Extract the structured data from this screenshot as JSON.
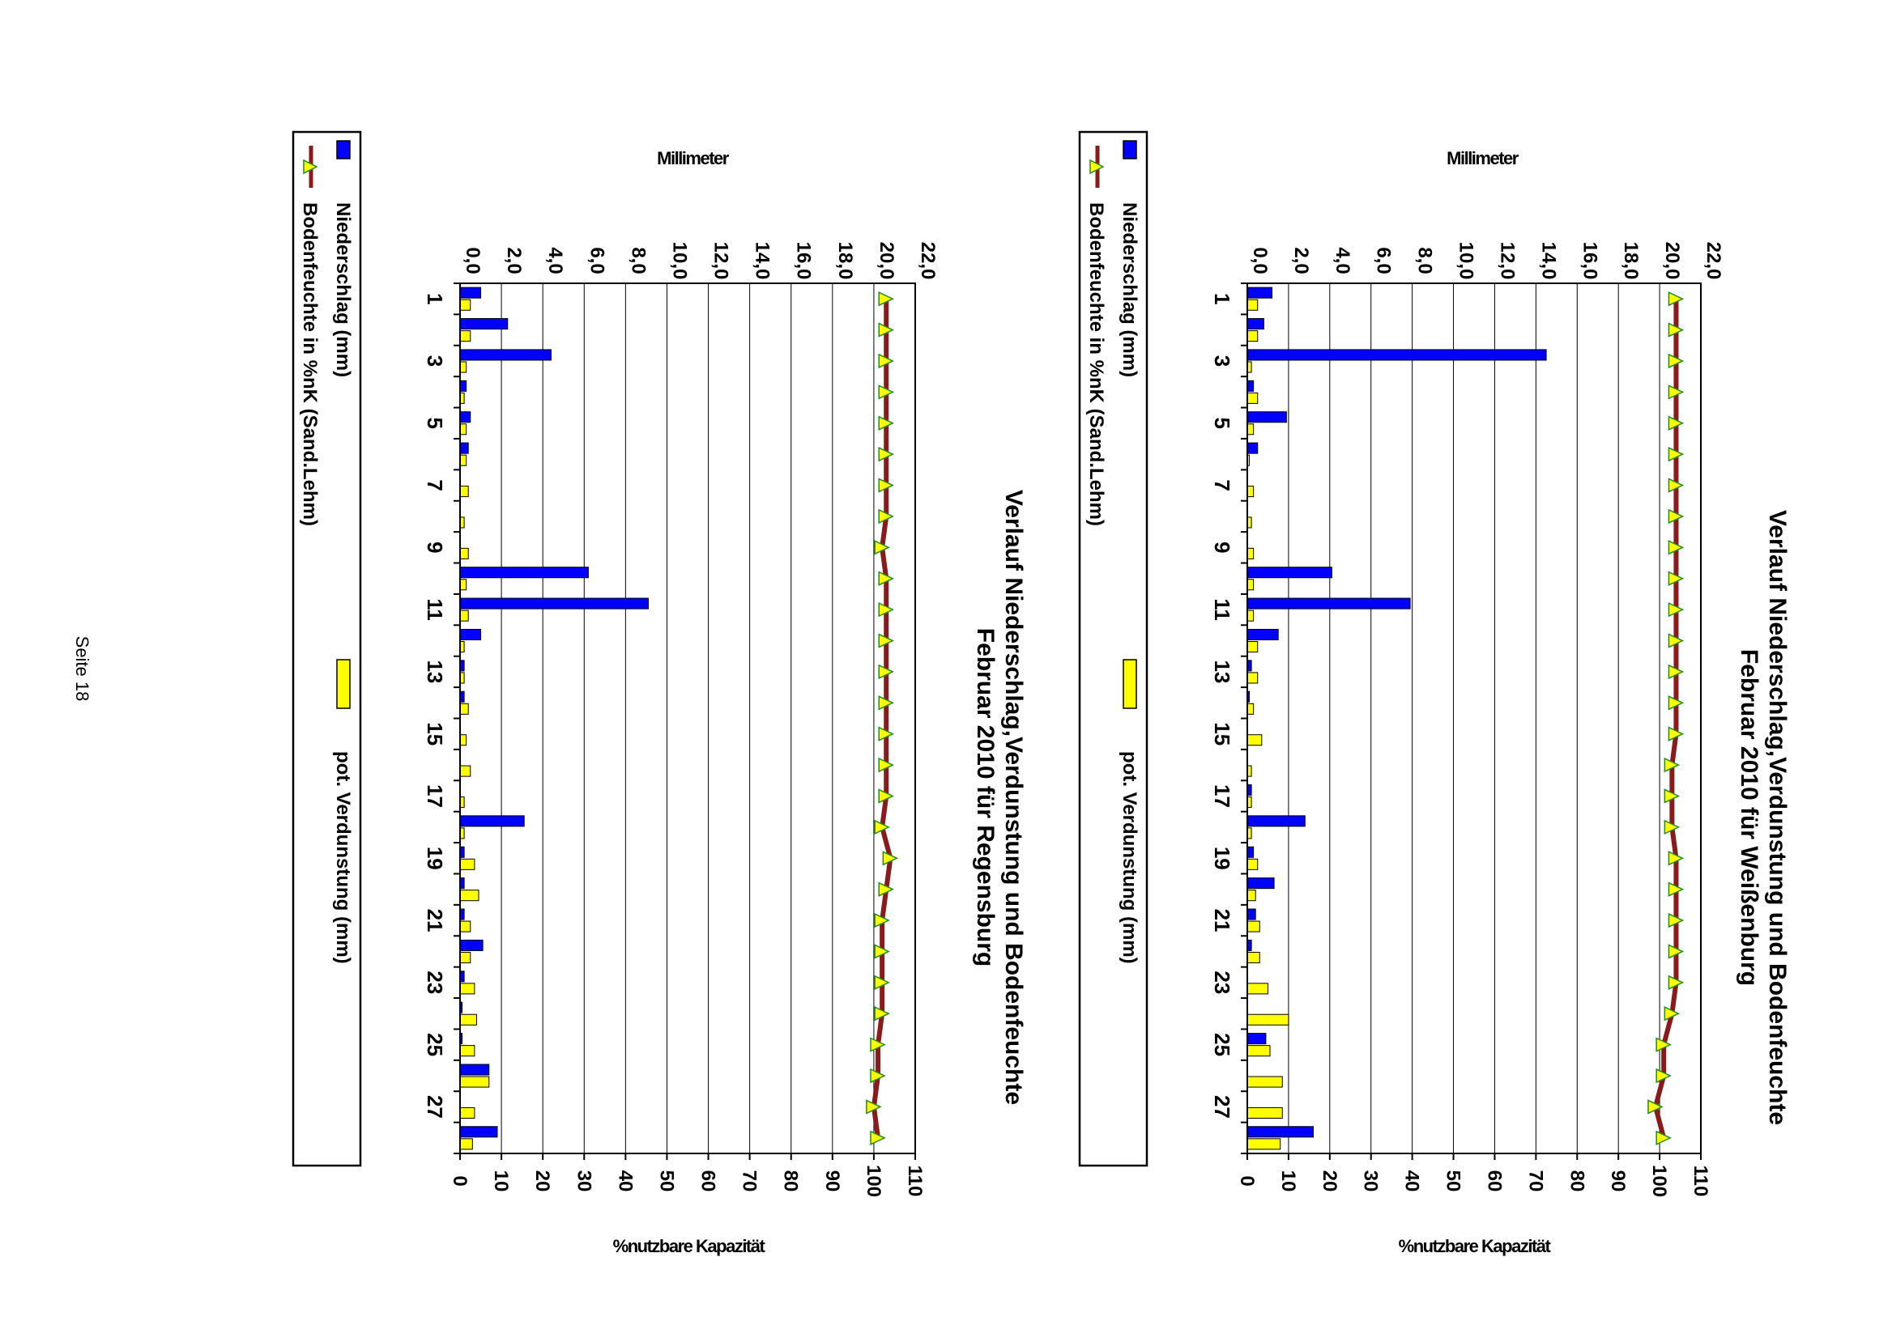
{
  "page": {
    "footer": "Seite 18"
  },
  "chart_data": [
    {
      "type": "bar",
      "title_line1": "Verlauf Niederschlag,Verdunstung und Bodenfeuchte",
      "title_line2": "Februar 2010 für Weißenburg",
      "ylabel": "Millimeter",
      "y2label": "%nutzbare Kapazität",
      "ylim": [
        0,
        22
      ],
      "y_ticks": [
        "0,0",
        "2,0",
        "4,0",
        "6,0",
        "8,0",
        "10,0",
        "12,0",
        "14,0",
        "16,0",
        "18,0",
        "20,0",
        "22,0"
      ],
      "y2lim": [
        0,
        110
      ],
      "y2_ticks": [
        "0",
        "10",
        "20",
        "30",
        "40",
        "50",
        "60",
        "70",
        "80",
        "90",
        "100",
        "110"
      ],
      "x_tick_labels": [
        "1",
        "3",
        "5",
        "7",
        "9",
        "11",
        "13",
        "15",
        "17",
        "19",
        "21",
        "23",
        "25",
        "27"
      ],
      "grid": true,
      "legend": {
        "position": "bottom",
        "items": [
          {
            "label": "Niederschlag (mm)",
            "color": "#0000ff",
            "marker": "bar"
          },
          {
            "label": "pot. Verdunstung (mm)",
            "color": "#ffff00",
            "marker": "bar"
          },
          {
            "label": "Bodenfeuchte in %nK (Sand.Lehm)",
            "color": "#8b1a1a",
            "marker": "line-triangle"
          }
        ]
      },
      "days": [
        1,
        2,
        3,
        4,
        5,
        6,
        7,
        8,
        9,
        10,
        11,
        12,
        13,
        14,
        15,
        16,
        17,
        18,
        19,
        20,
        21,
        22,
        23,
        24,
        25,
        26,
        27,
        28
      ],
      "series": [
        {
          "name": "Niederschlag (mm)",
          "axis": "left",
          "color": "#0000ff",
          "values": [
            1.2,
            0.8,
            14.5,
            0.3,
            1.9,
            0.5,
            0,
            0,
            0,
            4.1,
            7.9,
            1.5,
            0.2,
            0.1,
            0,
            0,
            0.2,
            2.8,
            0.3,
            1.3,
            0.4,
            0.2,
            0,
            0,
            0.9,
            0,
            0,
            3.2
          ]
        },
        {
          "name": "pot. Verdunstung (mm)",
          "axis": "left",
          "color": "#ffff00",
          "values": [
            0.5,
            0.5,
            0.2,
            0.5,
            0.3,
            0.1,
            0.3,
            0.2,
            0.3,
            0.3,
            0.3,
            0.5,
            0.5,
            0.3,
            0.7,
            0.2,
            0.2,
            0.2,
            0.5,
            0.4,
            0.6,
            0.6,
            1.0,
            2.0,
            1.1,
            1.7,
            1.7,
            1.6
          ]
        },
        {
          "name": "Bodenfeuchte in %nK (Sand.Lehm)",
          "axis": "right",
          "color": "#8b1a1a",
          "marker_color": "#ffff00",
          "values": [
            104,
            104,
            104,
            104,
            104,
            104,
            104,
            104,
            104,
            104,
            104,
            104,
            104,
            104,
            104,
            103,
            103,
            103,
            104,
            104,
            104,
            104,
            104,
            103,
            101,
            101,
            99,
            101
          ]
        }
      ]
    },
    {
      "type": "bar",
      "title_line1": "Verlauf Niederschlag,Verdunstung und Bodenfeuchte",
      "title_line2": "Februar 2010 für Regensburg",
      "ylabel": "Millimeter",
      "y2label": "%nutzbare Kapazität",
      "ylim": [
        0,
        22
      ],
      "y_ticks": [
        "0,0",
        "2,0",
        "4,0",
        "6,0",
        "8,0",
        "10,0",
        "12,0",
        "14,0",
        "16,0",
        "18,0",
        "20,0",
        "22,0"
      ],
      "y2lim": [
        0,
        110
      ],
      "y2_ticks": [
        "0",
        "10",
        "20",
        "30",
        "40",
        "50",
        "60",
        "70",
        "80",
        "90",
        "100",
        "110"
      ],
      "x_tick_labels": [
        "1",
        "3",
        "5",
        "7",
        "9",
        "11",
        "13",
        "15",
        "17",
        "19",
        "21",
        "23",
        "25",
        "27"
      ],
      "grid": true,
      "legend": {
        "position": "bottom",
        "items": [
          {
            "label": "Niederschlag (mm)",
            "color": "#0000ff",
            "marker": "bar"
          },
          {
            "label": "pot. Verdunstung (mm)",
            "color": "#ffff00",
            "marker": "bar"
          },
          {
            "label": "Bodenfeuchte in %nK (Sand.Lehm)",
            "color": "#8b1a1a",
            "marker": "line-triangle"
          }
        ]
      },
      "days": [
        1,
        2,
        3,
        4,
        5,
        6,
        7,
        8,
        9,
        10,
        11,
        12,
        13,
        14,
        15,
        16,
        17,
        18,
        19,
        20,
        21,
        22,
        23,
        24,
        25,
        26,
        27,
        28
      ],
      "series": [
        {
          "name": "Niederschlag (mm)",
          "axis": "left",
          "color": "#0000ff",
          "values": [
            1.0,
            2.3,
            4.4,
            0.3,
            0.5,
            0.4,
            0,
            0,
            0,
            6.2,
            9.1,
            1.0,
            0.2,
            0.2,
            0,
            0,
            0,
            3.1,
            0.2,
            0.2,
            0.2,
            1.1,
            0.2,
            0.1,
            0.1,
            1.4,
            0,
            1.8
          ]
        },
        {
          "name": "pot. Verdunstung (mm)",
          "axis": "left",
          "color": "#ffff00",
          "values": [
            0.5,
            0.5,
            0.3,
            0.2,
            0.3,
            0.3,
            0.4,
            0.2,
            0.4,
            0.3,
            0.4,
            0.2,
            0.2,
            0.4,
            0.3,
            0.5,
            0.2,
            0.2,
            0.7,
            0.9,
            0.5,
            0.5,
            0.7,
            0.8,
            0.7,
            1.4,
            0.7,
            0.6
          ]
        },
        {
          "name": "Bodenfeuchte in %nK (Sand.Lehm)",
          "axis": "right",
          "color": "#8b1a1a",
          "marker_color": "#ffff00",
          "values": [
            103,
            103,
            103,
            103,
            103,
            103,
            103,
            103,
            102,
            103,
            103,
            103,
            103,
            103,
            103,
            103,
            103,
            102,
            104,
            103,
            102,
            102,
            102,
            102,
            101,
            101,
            100,
            101
          ]
        }
      ]
    }
  ]
}
